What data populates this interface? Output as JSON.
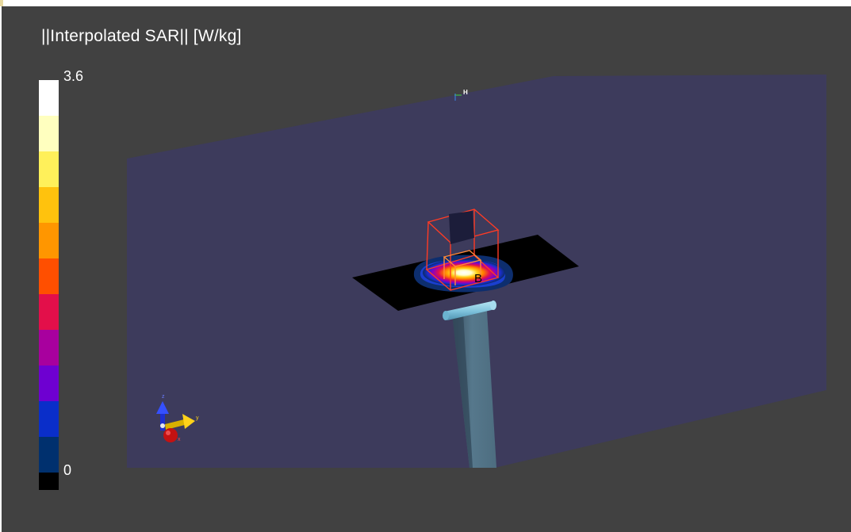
{
  "title": "||Interpolated SAR|| [W/kg]",
  "colorbar": {
    "max_label": "3.6",
    "min_label": "0",
    "colors": [
      "#ffffff",
      "#ffffbf",
      "#fff05a",
      "#ffc20d",
      "#ff9600",
      "#ff4f00",
      "#e30f4a",
      "#a8009e",
      "#6e00d1",
      "#0a2ec9",
      "#00306e",
      "#000000"
    ]
  },
  "scene": {
    "probe_label": "B",
    "marker_label": "H",
    "axes": {
      "x_label": "x",
      "y_label": "y",
      "z_label": "z"
    },
    "colors": {
      "background": "#414141",
      "plane": "#3d3b5c",
      "plate": "#000000",
      "box": "#ff3b24",
      "tube": "#84c7e0",
      "stand": "#4f6c80"
    }
  }
}
